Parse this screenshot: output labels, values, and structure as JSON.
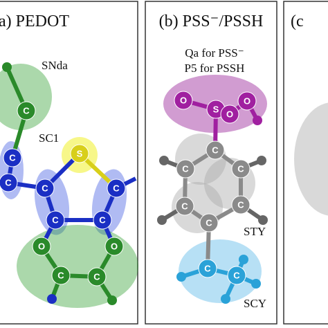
{
  "panels": [
    {
      "label": "a) PEDOT",
      "annotations": [
        "SNda",
        "SC1"
      ],
      "atoms": [
        "C",
        "C",
        "C",
        "S",
        "C",
        "C",
        "C",
        "C",
        "O",
        "O",
        "C",
        "C"
      ]
    },
    {
      "label": "(b) PSS⁻/PSSH",
      "annotations": [
        "Qa for PSS⁻",
        "P5 for PSSH",
        "STY",
        "SCY"
      ],
      "atoms": [
        "O",
        "S",
        "O",
        "O",
        "C",
        "C",
        "C",
        "C",
        "C",
        "C",
        "C",
        "C"
      ]
    },
    {
      "label": "(c"
    }
  ]
}
